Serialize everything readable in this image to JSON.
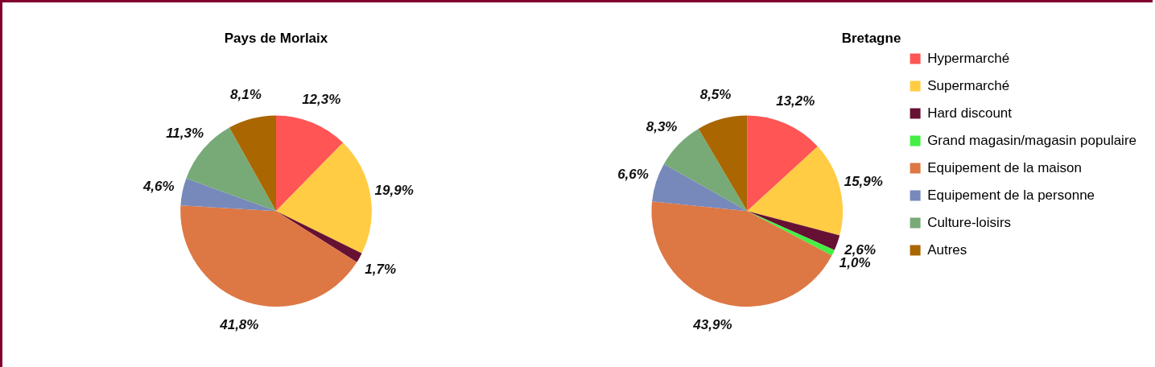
{
  "chart_data": [
    {
      "type": "pie",
      "title": "Pays de Morlaix",
      "categories": [
        null,
        null,
        null,
        null,
        null,
        null,
        null,
        null
      ],
      "values": [
        12.3,
        19.9,
        1.7,
        0,
        41.8,
        4.6,
        11.3,
        8.1
      ],
      "value_labels": [
        "12,3%",
        "19,9%",
        "1,7%",
        null,
        "41,8%",
        "4,6%",
        "11,3%",
        "8,1%"
      ],
      "colors": [
        "#ff5555",
        "#ffcc44",
        "#661133",
        "#44ee44",
        "#dd7744",
        "#7788bb",
        "#77aa77",
        "#aa6600"
      ]
    },
    {
      "type": "pie",
      "title": "Bretagne",
      "categories": [
        "Hypermarché",
        "Supermarché",
        "Hard discount",
        "Grand magasin/magasin populaire",
        "Equipement de la maison",
        "Equipement de la personne",
        "Culture-loisirs",
        "Autres"
      ],
      "values": [
        13.2,
        15.9,
        2.6,
        1.0,
        43.9,
        6.6,
        8.3,
        8.5
      ],
      "value_labels": [
        "13,2%",
        "15,9%",
        "2,6%",
        "1,0%",
        "43,9%",
        "6,6%",
        "8,3%",
        "8,5%"
      ],
      "colors": [
        "#ff5555",
        "#ffcc44",
        "#661133",
        "#44ee44",
        "#dd7744",
        "#7788bb",
        "#77aa77",
        "#aa6600"
      ],
      "legend": "right"
    }
  ]
}
